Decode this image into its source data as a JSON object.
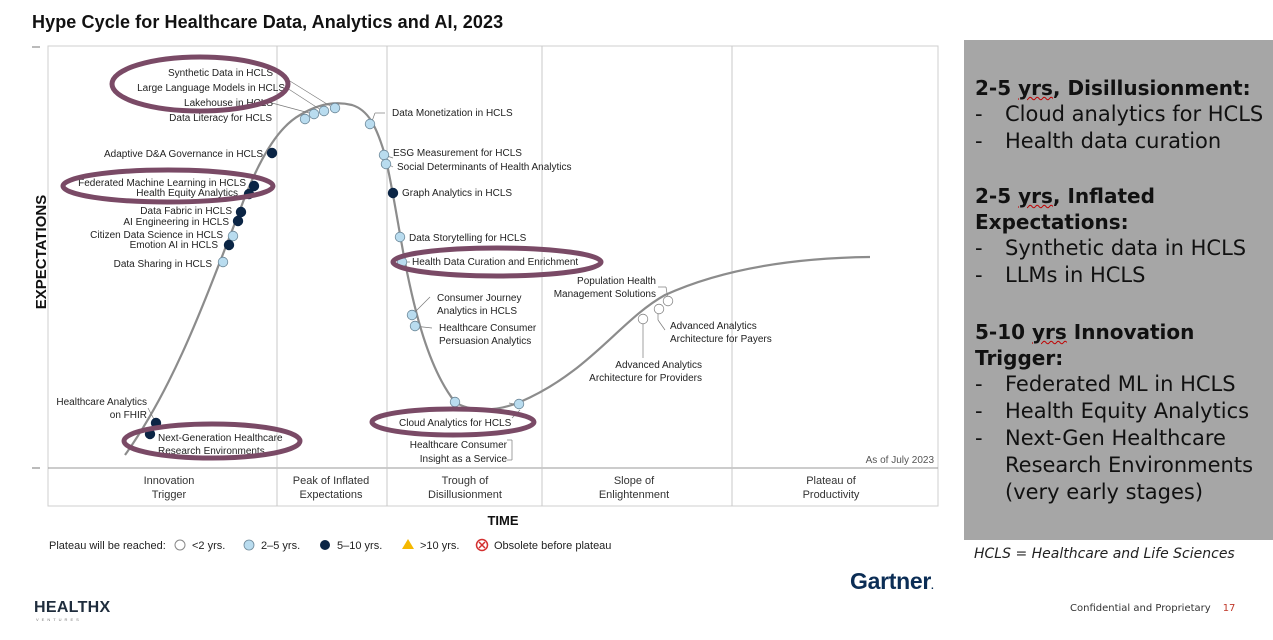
{
  "title": "Hype Cycle for Healthcare Data, Analytics and AI, 2023",
  "chart_data": {
    "type": "line",
    "title": "Hype Cycle for Healthcare Data, Analytics and AI, 2023",
    "xlabel": "TIME",
    "ylabel": "EXPECTATIONS",
    "as_of": "As of July 2023",
    "phases": [
      "Innovation Trigger",
      "Peak of Inflated Expectations",
      "Trough of Disillusionment",
      "Slope of Enlightenment",
      "Plateau of Productivity"
    ],
    "legend": {
      "prefix": "Plateau will be reached:",
      "items": [
        {
          "label": "<2 yrs.",
          "color": "#ffffff"
        },
        {
          "label": "2–5 yrs.",
          "color": "#b9dcef"
        },
        {
          "label": "5–10 yrs.",
          "color": "#0b2545"
        },
        {
          "label": ">10 yrs.",
          "color": "#f5b800"
        },
        {
          "label": "Obsolete before plateau",
          "color": "#d32f2f"
        }
      ]
    },
    "technologies": [
      {
        "name": "Synthetic Data in HCLS",
        "plateau": "2–5 yrs."
      },
      {
        "name": "Large Language Models in HCLS",
        "plateau": "2–5 yrs."
      },
      {
        "name": "Lakehouse in HCLS",
        "plateau": "2–5 yrs."
      },
      {
        "name": "Data Literacy for HCLS",
        "plateau": "2–5 yrs."
      },
      {
        "name": "Adaptive D&A Governance in HCLS",
        "plateau": "5–10 yrs."
      },
      {
        "name": "Federated Machine Learning in HCLS",
        "plateau": "5–10 yrs."
      },
      {
        "name": "Health Equity Analytics",
        "plateau": "5–10 yrs."
      },
      {
        "name": "Data Fabric in HCLS",
        "plateau": "5–10 yrs."
      },
      {
        "name": "AI Engineering in HCLS",
        "plateau": "5–10 yrs."
      },
      {
        "name": "Citizen Data Science in HCLS",
        "plateau": "2–5 yrs."
      },
      {
        "name": "Emotion AI in HCLS",
        "plateau": "5–10 yrs."
      },
      {
        "name": "Data Sharing in HCLS",
        "plateau": "2–5 yrs."
      },
      {
        "name": "Healthcare Analytics on FHIR",
        "plateau": "5–10 yrs."
      },
      {
        "name": "Next-Generation Healthcare Research Environments",
        "plateau": "5–10 yrs."
      },
      {
        "name": "Data Monetization in HCLS",
        "plateau": "2–5 yrs."
      },
      {
        "name": "ESG Measurement for HCLS",
        "plateau": "2–5 yrs."
      },
      {
        "name": "Social Determinants of Health Analytics",
        "plateau": "2–5 yrs."
      },
      {
        "name": "Graph Analytics in HCLS",
        "plateau": "5–10 yrs."
      },
      {
        "name": "Data Storytelling for HCLS",
        "plateau": "2–5 yrs."
      },
      {
        "name": "Health Data Curation and Enrichment",
        "plateau": "2–5 yrs."
      },
      {
        "name": "Consumer Journey Analytics in HCLS",
        "plateau": "2–5 yrs."
      },
      {
        "name": "Healthcare Consumer Persuasion Analytics",
        "plateau": "2–5 yrs."
      },
      {
        "name": "Cloud Analytics for HCLS",
        "plateau": "2–5 yrs."
      },
      {
        "name": "Healthcare Consumer Insight as a Service",
        "plateau": "2–5 yrs."
      },
      {
        "name": "Population Health Management Solutions",
        "plateau": "<2 yrs."
      },
      {
        "name": "Advanced Analytics Architecture for Payers",
        "plateau": "<2 yrs."
      },
      {
        "name": "Advanced Analytics Architecture for Providers",
        "plateau": "<2 yrs."
      }
    ]
  },
  "labels": {
    "synthetic": "Synthetic Data in HCLS",
    "llm": "Large Language Models in HCLS",
    "lakehouse": "Lakehouse in HCLS",
    "literacy": "Data Literacy for HCLS",
    "adaptive": "Adaptive D&A Governance in HCLS",
    "federated": "Federated Machine Learning in HCLS",
    "equity": "Health Equity Analytics",
    "fabric": "Data Fabric in HCLS",
    "aieng": "AI Engineering in HCLS",
    "citizen": "Citizen Data Science in HCLS",
    "emotion": "Emotion AI in HCLS",
    "sharing": "Data Sharing in HCLS",
    "fhir1": "Healthcare Analytics",
    "fhir2": "on FHIR",
    "nextgen1": "Next-Generation Healthcare",
    "nextgen2": "Research Environments",
    "monetization": "Data Monetization in HCLS",
    "esg": "ESG Measurement for HCLS",
    "sdoh": "Social Determinants of Health Analytics",
    "graph": "Graph Analytics in HCLS",
    "storytelling": "Data Storytelling for HCLS",
    "curation": "Health Data Curation and Enrichment",
    "journey1": "Consumer Journey",
    "journey2": "Analytics in HCLS",
    "persuasion1": "Healthcare Consumer",
    "persuasion2": "Persuasion Analytics",
    "cloud": "Cloud Analytics for HCLS",
    "insight1": "Healthcare Consumer",
    "insight2": "Insight as a Service",
    "pophealth1": "Population Health",
    "pophealth2": "Management Solutions",
    "payers1": "Advanced Analytics",
    "payers2": "Architecture for Payers",
    "providers1": "Advanced Analytics",
    "providers2": "Architecture for Providers",
    "phase_innov1": "Innovation",
    "phase_innov2": "Trigger",
    "phase_peak1": "Peak of Inflated",
    "phase_peak2": "Expectations",
    "phase_trough1": "Trough of",
    "phase_trough2": "Disillusionment",
    "phase_slope1": "Slope of",
    "phase_slope2": "Enlightenment",
    "phase_plateau1": "Plateau of",
    "phase_plateau2": "Productivity"
  },
  "panel": {
    "b1_head_a": "2-5 ",
    "b1_head_u": "yrs",
    "b1_head_b": ", Disillusionment:",
    "b1_items": [
      "Cloud analytics for HCLS",
      "Health data curation"
    ],
    "b2_head_a": "2-5 ",
    "b2_head_u": "yrs",
    "b2_head_b": ", Inflated Expectations:",
    "b2_items": [
      "Synthetic data in HCLS",
      "LLMs in HCLS"
    ],
    "b3_head_a": "5-10 ",
    "b3_head_u": "yrs",
    "b3_head_b": " Innovation Trigger:",
    "b3_items": [
      "Federated ML in HCLS",
      "Health Equity Analytics",
      "Next-Gen Healthcare Research Environments (very early stages)"
    ]
  },
  "note": "HCLS = Healthcare and Life Sciences",
  "gartner": "Gartner",
  "logo": "HEALTHX",
  "logo_sub": "VENTURES",
  "footer": {
    "text": "Confidential and Proprietary",
    "page": "17"
  },
  "colors": {
    "circle": "#7a4a66",
    "dark_dot": "#0b2545",
    "light_dot": "#b9dcef",
    "panel": "#a6a6a6"
  }
}
